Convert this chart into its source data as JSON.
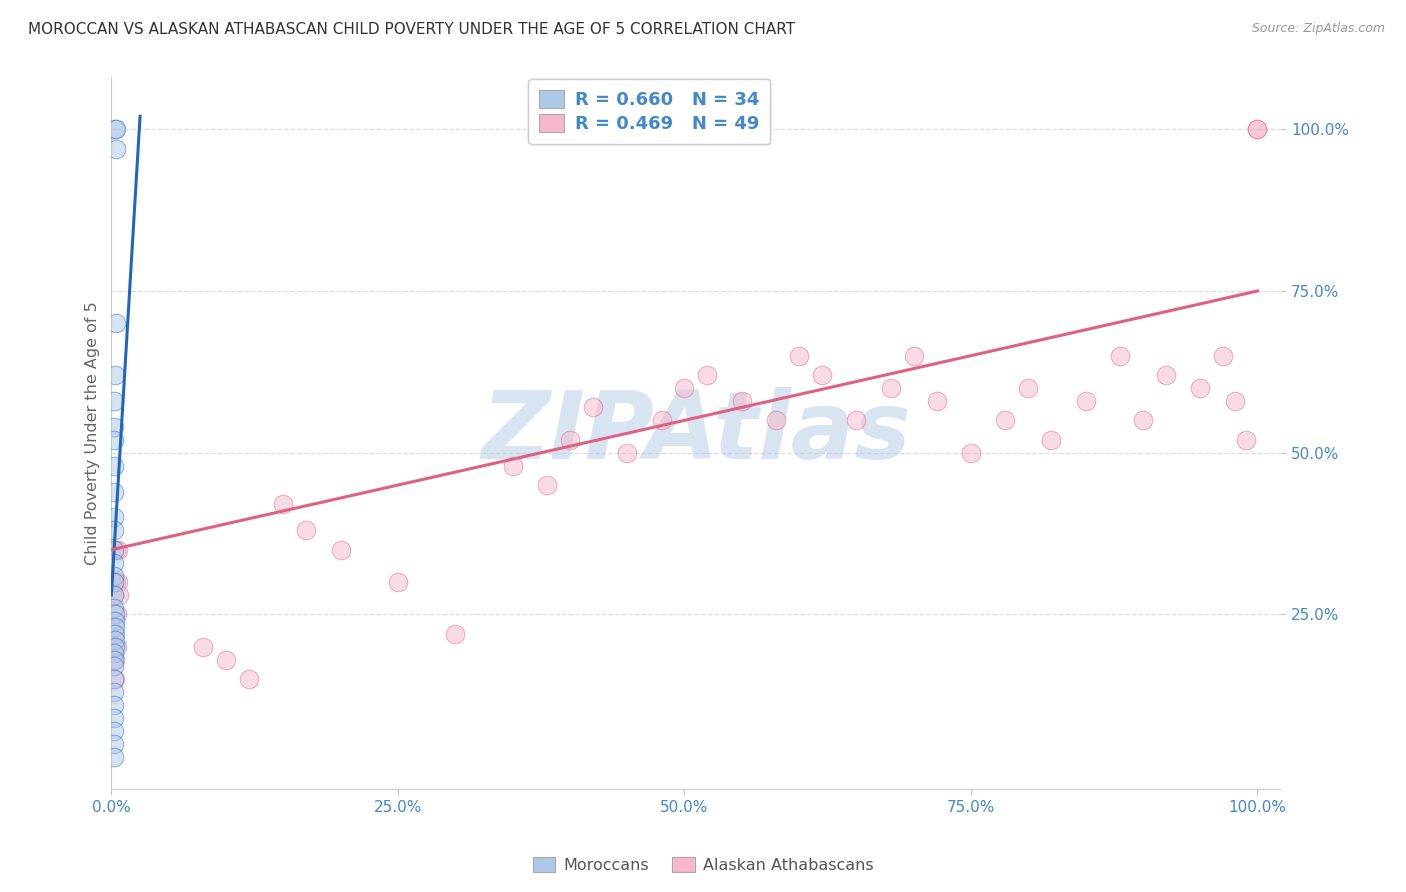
{
  "title": "MOROCCAN VS ALASKAN ATHABASCAN CHILD POVERTY UNDER THE AGE OF 5 CORRELATION CHART",
  "source": "Source: ZipAtlas.com",
  "ylabel": "Child Poverty Under the Age of 5",
  "watermark": "ZIPAtlas",
  "legend_labels": [
    "Moroccans",
    "Alaskan Athabascans"
  ],
  "moroccan_color": "#aec8e8",
  "athabascan_color": "#f5b8cc",
  "moroccan_line_color": "#2266bb",
  "athabascan_line_color": "#e06080",
  "tick_label_color": "#4488cc",
  "background_color": "#ffffff",
  "grid_color": "#dddddd",
  "title_color": "#333333",
  "axis_label_color": "#666666",
  "moroccan_x": [
    0.003,
    0.004,
    0.004,
    0.004,
    0.003,
    0.002,
    0.002,
    0.002,
    0.002,
    0.002,
    0.002,
    0.002,
    0.002,
    0.002,
    0.002,
    0.002,
    0.002,
    0.002,
    0.003,
    0.003,
    0.003,
    0.003,
    0.003,
    0.003,
    0.002,
    0.002,
    0.002,
    0.002,
    0.002,
    0.002,
    0.002,
    0.002,
    0.002,
    0.002
  ],
  "moroccan_y": [
    1.0,
    1.0,
    0.97,
    0.7,
    0.62,
    0.58,
    0.54,
    0.52,
    0.48,
    0.44,
    0.4,
    0.38,
    0.35,
    0.33,
    0.31,
    0.3,
    0.28,
    0.26,
    0.25,
    0.24,
    0.23,
    0.22,
    0.21,
    0.2,
    0.19,
    0.18,
    0.17,
    0.15,
    0.13,
    0.11,
    0.09,
    0.07,
    0.05,
    0.03
  ],
  "athabascan_x": [
    0.002,
    0.002,
    0.003,
    0.003,
    0.004,
    0.004,
    0.005,
    0.005,
    0.006,
    0.006,
    0.007,
    0.08,
    0.1,
    0.12,
    0.15,
    0.17,
    0.2,
    0.25,
    0.3,
    0.35,
    0.38,
    0.4,
    0.42,
    0.45,
    0.48,
    0.5,
    0.52,
    0.55,
    0.58,
    0.6,
    0.62,
    0.65,
    0.68,
    0.7,
    0.72,
    0.75,
    0.78,
    0.8,
    0.82,
    0.85,
    0.88,
    0.9,
    0.92,
    0.95,
    0.97,
    0.98,
    0.99,
    1.0,
    1.0
  ],
  "athabascan_y": [
    0.28,
    0.22,
    0.18,
    0.15,
    0.35,
    0.3,
    0.25,
    0.2,
    0.35,
    0.3,
    0.28,
    0.2,
    0.18,
    0.15,
    0.42,
    0.38,
    0.35,
    0.3,
    0.22,
    0.48,
    0.45,
    0.52,
    0.57,
    0.5,
    0.55,
    0.6,
    0.62,
    0.58,
    0.55,
    0.65,
    0.62,
    0.55,
    0.6,
    0.65,
    0.58,
    0.5,
    0.55,
    0.6,
    0.52,
    0.58,
    0.65,
    0.55,
    0.62,
    0.6,
    0.65,
    0.58,
    0.52,
    1.0,
    1.0
  ],
  "xlim": [
    0.0,
    1.02
  ],
  "ylim": [
    -0.02,
    1.08
  ],
  "xticks": [
    0.0,
    0.25,
    0.5,
    0.75,
    1.0
  ],
  "xtick_labels": [
    "0.0%",
    "25.0%",
    "50.0%",
    "75.0%",
    "100.0%"
  ],
  "yticks": [
    0.25,
    0.5,
    0.75,
    1.0
  ],
  "ytick_labels": [
    "25.0%",
    "50.0%",
    "75.0%",
    "100.0%"
  ],
  "dot_size": 180,
  "dot_alpha": 0.5,
  "line_width": 2.2,
  "moroccan_trend_x": [
    0.0,
    0.025
  ],
  "moroccan_trend_y": [
    0.28,
    1.02
  ],
  "athabascan_trend_x": [
    0.0,
    1.0
  ],
  "athabascan_trend_y": [
    0.35,
    0.75
  ]
}
